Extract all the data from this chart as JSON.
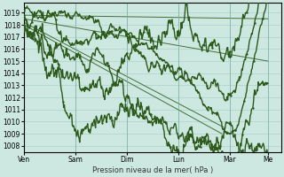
{
  "bg_color": "#cce8e0",
  "line_color": "#2d5a1b",
  "grid_color": "#a8ccc4",
  "xlabel": "Pression niveau de la mer( hPa )",
  "ylim": [
    1007.5,
    1019.8
  ],
  "yticks": [
    1008,
    1009,
    1010,
    1011,
    1012,
    1013,
    1014,
    1015,
    1016,
    1017,
    1018,
    1019
  ],
  "xtick_labels": [
    "Ven",
    "Sam",
    "Dim",
    "Lun",
    "Mar",
    "Me"
  ],
  "xtick_positions": [
    0,
    1,
    2,
    3,
    4,
    4.75
  ],
  "xlim": [
    0,
    5
  ]
}
